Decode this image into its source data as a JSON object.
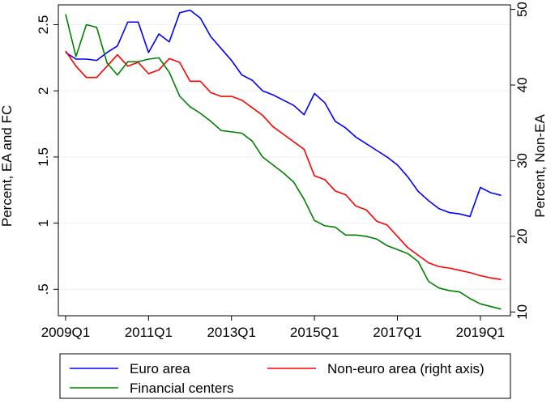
{
  "chart_data": {
    "type": "line",
    "title": "",
    "xlabel": "",
    "ylabel_left": "Percent, EA and FC",
    "ylabel_right": "Percent, Non-EA",
    "ylim_left": [
      0.3,
      2.65
    ],
    "ylim_right": [
      9.5,
      50.6
    ],
    "yticks_left": [
      {
        "value": 0.5,
        "label": ".5"
      },
      {
        "value": 1,
        "label": "1"
      },
      {
        "value": 1.5,
        "label": "1.5"
      },
      {
        "value": 2,
        "label": "2"
      },
      {
        "value": 2.5,
        "label": "2.5"
      }
    ],
    "yticks_right": [
      {
        "value": 10,
        "label": "10"
      },
      {
        "value": 20,
        "label": "20"
      },
      {
        "value": 30,
        "label": "30"
      },
      {
        "value": 40,
        "label": "40"
      },
      {
        "value": 50,
        "label": "50"
      }
    ],
    "xlim": [
      -0.7,
      42.9
    ],
    "xticks": [
      {
        "index": 0,
        "label": "2009Q1"
      },
      {
        "index": 8,
        "label": "2011Q1"
      },
      {
        "index": 16,
        "label": "2013Q1"
      },
      {
        "index": 24,
        "label": "2015Q1"
      },
      {
        "index": 32,
        "label": "2017Q1"
      },
      {
        "index": 40,
        "label": "2019Q1"
      }
    ],
    "categories": [
      "2009Q1",
      "2009Q2",
      "2009Q3",
      "2009Q4",
      "2010Q1",
      "2010Q2",
      "2010Q3",
      "2010Q4",
      "2011Q1",
      "2011Q2",
      "2011Q3",
      "2011Q4",
      "2012Q1",
      "2012Q2",
      "2012Q3",
      "2012Q4",
      "2013Q1",
      "2013Q2",
      "2013Q3",
      "2013Q4",
      "2014Q1",
      "2014Q2",
      "2014Q3",
      "2014Q4",
      "2015Q1",
      "2015Q2",
      "2015Q3",
      "2015Q4",
      "2016Q1",
      "2016Q2",
      "2016Q3",
      "2016Q4",
      "2017Q1",
      "2017Q2",
      "2017Q3",
      "2017Q4",
      "2018Q1",
      "2018Q2",
      "2018Q3",
      "2018Q4",
      "2019Q1",
      "2019Q2",
      "2019Q3"
    ],
    "series": [
      {
        "name": "Euro area",
        "axis": "left",
        "color": "#0000ff",
        "values": [
          2.29,
          2.24,
          2.24,
          2.23,
          2.29,
          2.34,
          2.52,
          2.52,
          2.29,
          2.43,
          2.37,
          2.59,
          2.61,
          2.55,
          2.41,
          2.32,
          2.23,
          2.12,
          2.08,
          2.0,
          1.97,
          1.93,
          1.89,
          1.82,
          1.98,
          1.91,
          1.77,
          1.72,
          1.65,
          1.6,
          1.55,
          1.5,
          1.44,
          1.35,
          1.24,
          1.17,
          1.11,
          1.08,
          1.07,
          1.05,
          1.27,
          1.23,
          1.21
        ]
      },
      {
        "name": "Non-euro area (right axis)",
        "axis": "right",
        "color": "#ff0000",
        "values": [
          44.5,
          42.5,
          41.0,
          41.0,
          42.5,
          44.0,
          42.5,
          43.0,
          41.5,
          42.0,
          43.5,
          43.0,
          40.5,
          40.5,
          39.0,
          38.5,
          38.5,
          38.0,
          37.0,
          36.0,
          34.5,
          33.5,
          32.5,
          31.5,
          28.0,
          27.5,
          26.0,
          25.5,
          24.0,
          23.5,
          22.0,
          21.5,
          20.0,
          18.5,
          17.5,
          16.5,
          16.0,
          15.8,
          15.5,
          15.2,
          14.8,
          14.5,
          14.3
        ]
      },
      {
        "name": "Financial centers",
        "axis": "left",
        "color": "#008000",
        "values": [
          2.58,
          2.26,
          2.5,
          2.48,
          2.21,
          2.12,
          2.22,
          2.22,
          2.24,
          2.25,
          2.14,
          1.96,
          1.88,
          1.83,
          1.77,
          1.7,
          1.69,
          1.68,
          1.62,
          1.5,
          1.44,
          1.38,
          1.31,
          1.18,
          1.02,
          0.98,
          0.97,
          0.91,
          0.91,
          0.9,
          0.88,
          0.83,
          0.8,
          0.77,
          0.71,
          0.56,
          0.51,
          0.49,
          0.48,
          0.43,
          0.39,
          0.37,
          0.35
        ]
      }
    ],
    "legend": {
      "placement": "bottom",
      "entries": [
        "Euro area",
        "Non-euro area (right axis)",
        "Financial centers"
      ]
    }
  }
}
